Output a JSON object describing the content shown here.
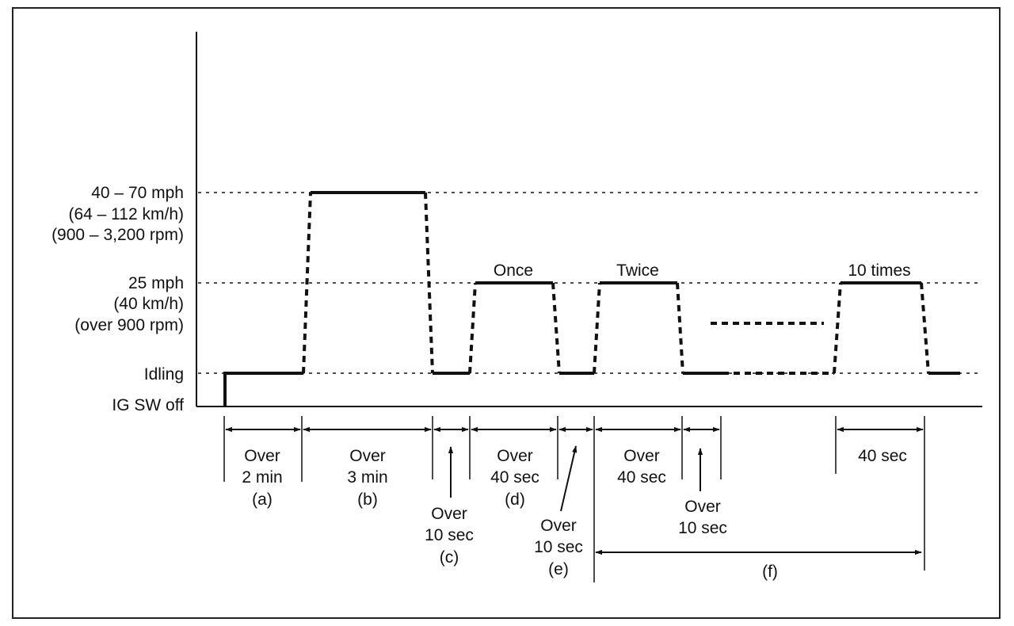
{
  "y_levels": {
    "high": [
      "40 – 70 mph",
      "(64 – 112 km/h)",
      "(900 – 3,200 rpm)"
    ],
    "mid": [
      "25 mph",
      "(40 km/h)",
      "(over 900 rpm)"
    ],
    "idle": "Idling",
    "off": "IG SW off"
  },
  "cycle_labels": {
    "once": "Once",
    "twice": "Twice",
    "ten": "10 times"
  },
  "intervals": {
    "a": [
      "Over",
      "2 min",
      "(a)"
    ],
    "b": [
      "Over",
      "3 min",
      "(b)"
    ],
    "c": [
      "Over",
      "10 sec",
      "(c)"
    ],
    "d": [
      "Over",
      "40 sec",
      "(d)"
    ],
    "e": [
      "Over",
      "10 sec",
      "(e)"
    ],
    "f1": [
      "Over",
      "40 sec"
    ],
    "f2": [
      "Over",
      "10 sec"
    ],
    "f3": "40 sec",
    "f": "(f)"
  }
}
